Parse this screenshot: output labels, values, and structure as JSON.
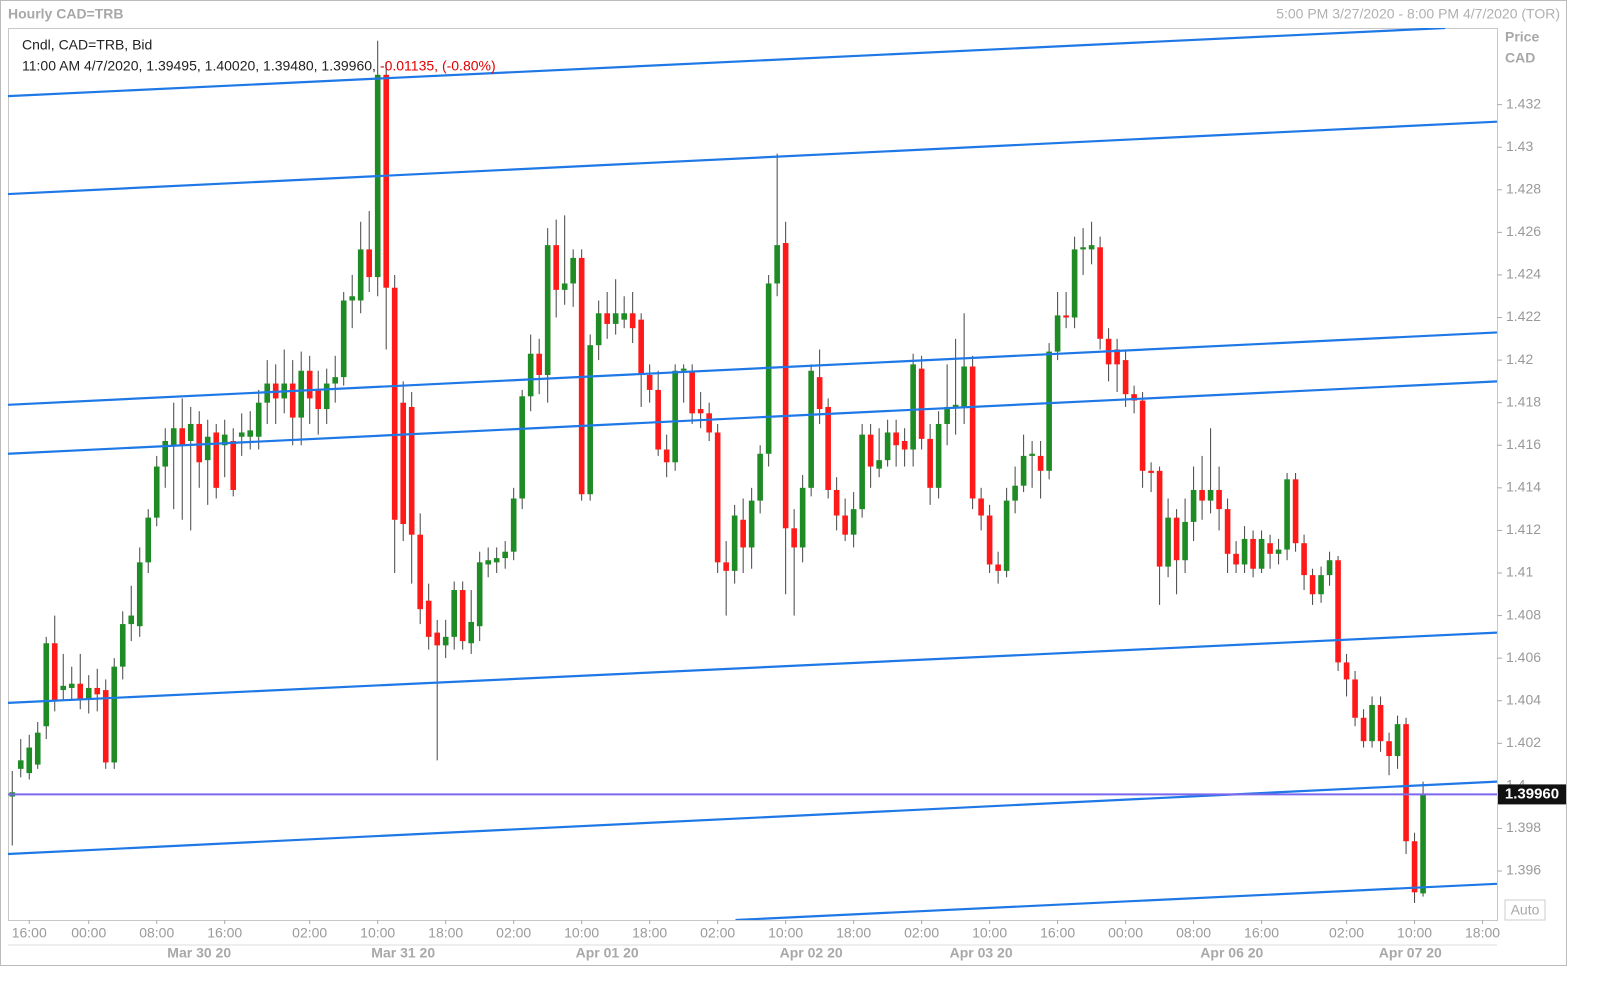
{
  "chart_data": {
    "type": "candlestick",
    "title": "Hourly CAD=TRB",
    "subtitle": "5:00 PM 3/27/2020 - 8:00 PM 4/7/2020 (TOR)",
    "legend_title": "Cndl, CAD=TRB, Bid",
    "legend_values": "11:00 AM 4/7/2020, 1.39495, 1.40020, 1.39480, 1.39960,",
    "legend_change": "-0.01135, (-0.80%)",
    "y_label": "Price",
    "y_unit": "CAD",
    "scale_mode": "Auto",
    "up_color": "#1f8b24",
    "down_color": "#ff1a1a",
    "wick_color": "#444444",
    "open": [
      1.3995,
      1.4008,
      1.4006,
      1.401,
      1.4028,
      1.4067,
      1.4045,
      1.4046,
      1.4048,
      1.4041,
      1.4046,
      1.4045,
      1.4011,
      1.4056,
      1.4076,
      1.4075,
      1.4105,
      1.4126,
      1.415,
      1.416,
      1.4168,
      1.4162,
      1.417,
      1.4153,
      1.4166,
      1.416,
      1.4162,
      1.4164,
      1.4164,
      1.4164,
      1.418,
      1.4189,
      1.4182,
      1.4189,
      1.4173,
      1.4195,
      1.4186,
      1.4177,
      1.4189,
      1.4192,
      1.4228,
      1.4228,
      1.4252,
      1.4239,
      1.4334,
      1.4234,
      1.418,
      1.4178,
      1.4118,
      1.4087,
      1.4072,
      1.4066,
      1.407,
      1.4092,
      1.4067,
      1.4075,
      1.4104,
      1.4105,
      1.4107,
      1.411,
      1.4135,
      1.4183,
      1.4203,
      1.4193,
      1.4254,
      1.4233,
      1.4236,
      1.4248,
      1.4137,
      1.4207,
      1.4222,
      1.4217,
      1.4219,
      1.4222,
      1.4219,
      1.4193,
      1.4186,
      1.4158,
      1.4152,
      1.4195,
      1.4195,
      1.4177,
      1.4175,
      1.4166,
      1.4105,
      1.4101,
      1.4125,
      1.4112,
      1.4134,
      1.4156,
      1.4236,
      1.4255,
      1.4121,
      1.4112,
      1.414,
      1.4192,
      1.4178,
      1.4139,
      1.4127,
      1.4118,
      1.413,
      1.4165,
      1.4149,
      1.4153,
      1.4166,
      1.4162,
      1.4158,
      1.4196,
      1.4163,
      1.414,
      1.417,
      1.4178,
      1.4178,
      1.4197,
      1.4135,
      1.4127,
      1.4104,
      1.4101,
      1.4134,
      1.4141,
      1.4155,
      1.4155,
      1.4148,
      1.4204,
      1.4221,
      1.422,
      1.4252,
      1.4252,
      1.4253,
      1.421,
      1.4205,
      1.42,
      1.4184,
      1.4181,
      1.4148,
      1.4148,
      1.4103,
      1.4126,
      1.4106,
      1.4124,
      1.4139,
      1.4134,
      1.4139,
      1.413,
      1.4109,
      1.4104,
      1.4116,
      1.4102,
      1.4114,
      1.4109,
      1.4111,
      1.4144,
      1.4114,
      1.4099,
      1.409,
      1.4099,
      1.4106,
      1.4058,
      1.405,
      1.4032,
      1.4021,
      1.4038,
      1.4021,
      1.4014,
      1.4029,
      1.3974,
      1.39495
    ],
    "high": [
      1.4007,
      1.4022,
      1.4024,
      1.403,
      1.407,
      1.408,
      1.4062,
      1.4056,
      1.4062,
      1.4052,
      1.4055,
      1.405,
      1.406,
      1.4082,
      1.4094,
      1.4112,
      1.413,
      1.4155,
      1.4168,
      1.418,
      1.4182,
      1.4178,
      1.4176,
      1.4172,
      1.417,
      1.4172,
      1.4168,
      1.4175,
      1.4176,
      1.4186,
      1.42,
      1.4198,
      1.4205,
      1.42,
      1.4204,
      1.4202,
      1.4195,
      1.4196,
      1.4202,
      1.4232,
      1.424,
      1.4265,
      1.427,
      1.435,
      1.434,
      1.424,
      1.419,
      1.4185,
      1.4128,
      1.4095,
      1.4078,
      1.4078,
      1.4096,
      1.4096,
      1.4092,
      1.411,
      1.4112,
      1.4112,
      1.4115,
      1.414,
      1.4186,
      1.4212,
      1.421,
      1.4262,
      1.4266,
      1.4268,
      1.4252,
      1.4252,
      1.4212,
      1.4228,
      1.4232,
      1.4238,
      1.423,
      1.4232,
      1.4222,
      1.4198,
      1.4195,
      1.4165,
      1.4198,
      1.4198,
      1.4198,
      1.4185,
      1.418,
      1.417,
      1.4115,
      1.4132,
      1.4135,
      1.414,
      1.416,
      1.424,
      1.4297,
      1.4265,
      1.413,
      1.4146,
      1.4198,
      1.4205,
      1.4182,
      1.4145,
      1.4135,
      1.4138,
      1.417,
      1.417,
      1.4168,
      1.4172,
      1.4172,
      1.4168,
      1.4203,
      1.4202,
      1.417,
      1.4176,
      1.4198,
      1.421,
      1.4222,
      1.4202,
      1.414,
      1.4132,
      1.411,
      1.414,
      1.415,
      1.4165,
      1.4162,
      1.4162,
      1.4208,
      1.4232,
      1.4232,
      1.4258,
      1.4262,
      1.4265,
      1.4258,
      1.4215,
      1.421,
      1.4205,
      1.4188,
      1.4185,
      1.4152,
      1.415,
      1.4135,
      1.413,
      1.4135,
      1.415,
      1.4155,
      1.4168,
      1.415,
      1.4135,
      1.4115,
      1.4122,
      1.412,
      1.412,
      1.4118,
      1.4116,
      1.4147,
      1.4147,
      1.4118,
      1.4102,
      1.4103,
      1.411,
      1.4108,
      1.4062,
      1.4054,
      1.4036,
      1.4042,
      1.4042,
      1.4025,
      1.4033,
      1.4032,
      1.3978,
      1.4002
    ],
    "low": [
      1.3972,
      1.4004,
      1.4003,
      1.4008,
      1.4022,
      1.4035,
      1.404,
      1.404,
      1.4036,
      1.4034,
      1.4035,
      1.4008,
      1.4008,
      1.405,
      1.4068,
      1.407,
      1.41,
      1.4122,
      1.414,
      1.413,
      1.4125,
      1.412,
      1.414,
      1.4132,
      1.4135,
      1.4145,
      1.4136,
      1.4155,
      1.4158,
      1.4158,
      1.417,
      1.417,
      1.4175,
      1.416,
      1.416,
      1.417,
      1.4165,
      1.417,
      1.418,
      1.4188,
      1.4215,
      1.4222,
      1.4232,
      1.423,
      1.4205,
      1.41,
      1.4115,
      1.4095,
      1.4076,
      1.4064,
      1.4012,
      1.406,
      1.4064,
      1.4064,
      1.4062,
      1.4068,
      1.4098,
      1.41,
      1.4102,
      1.4106,
      1.413,
      1.4176,
      1.4184,
      1.418,
      1.422,
      1.4226,
      1.4225,
      1.4134,
      1.4134,
      1.42,
      1.421,
      1.4212,
      1.4215,
      1.4208,
      1.4178,
      1.418,
      1.4155,
      1.4145,
      1.4148,
      1.418,
      1.417,
      1.4168,
      1.4162,
      1.41,
      1.408,
      1.4095,
      1.41,
      1.4102,
      1.4128,
      1.415,
      1.423,
      1.409,
      1.408,
      1.4105,
      1.4136,
      1.417,
      1.4135,
      1.412,
      1.4115,
      1.4112,
      1.4126,
      1.414,
      1.4145,
      1.415,
      1.415,
      1.415,
      1.415,
      1.4158,
      1.4132,
      1.4135,
      1.416,
      1.4165,
      1.417,
      1.413,
      1.412,
      1.41,
      1.4095,
      1.4098,
      1.4128,
      1.4138,
      1.414,
      1.4135,
      1.4144,
      1.42,
      1.4215,
      1.4215,
      1.424,
      1.4245,
      1.4205,
      1.419,
      1.4185,
      1.4178,
      1.4175,
      1.414,
      1.4138,
      1.4085,
      1.4098,
      1.409,
      1.41,
      1.4115,
      1.4125,
      1.4128,
      1.412,
      1.41,
      1.41,
      1.41,
      1.4098,
      1.41,
      1.4102,
      1.4104,
      1.4106,
      1.411,
      1.4092,
      1.4085,
      1.4086,
      1.4094,
      1.4054,
      1.4042,
      1.4028,
      1.4018,
      1.4018,
      1.4016,
      1.4005,
      1.4008,
      1.3968,
      1.3945,
      1.3948
    ],
    "close": [
      1.3997,
      1.4012,
      1.4018,
      1.4025,
      1.4067,
      1.404,
      1.4047,
      1.4048,
      1.4041,
      1.4046,
      1.4043,
      1.4011,
      1.4056,
      1.4076,
      1.408,
      1.4105,
      1.4126,
      1.415,
      1.4162,
      1.4168,
      1.416,
      1.417,
      1.4152,
      1.4164,
      1.414,
      1.4165,
      1.4139,
      1.4166,
      1.4167,
      1.418,
      1.4189,
      1.4182,
      1.4189,
      1.4173,
      1.4195,
      1.4182,
      1.4177,
      1.4189,
      1.4192,
      1.4228,
      1.423,
      1.4252,
      1.4239,
      1.4334,
      1.4234,
      1.4125,
      1.4123,
      1.4118,
      1.4083,
      1.407,
      1.4066,
      1.407,
      1.4092,
      1.4068,
      1.4077,
      1.4105,
      1.4106,
      1.4107,
      1.411,
      1.4135,
      1.4183,
      1.4203,
      1.4193,
      1.4254,
      1.4233,
      1.4236,
      1.4248,
      1.4137,
      1.4207,
      1.4222,
      1.4217,
      1.4222,
      1.4222,
      1.4215,
      1.4193,
      1.4186,
      1.4158,
      1.4152,
      1.4195,
      1.4196,
      1.4175,
      1.4175,
      1.4166,
      1.4105,
      1.4101,
      1.4127,
      1.4112,
      1.4134,
      1.4156,
      1.4236,
      1.4254,
      1.4121,
      1.4112,
      1.414,
      1.4195,
      1.4177,
      1.4139,
      1.4127,
      1.4118,
      1.413,
      1.4165,
      1.415,
      1.4153,
      1.4166,
      1.416,
      1.4158,
      1.4198,
      1.4163,
      1.414,
      1.417,
      1.4178,
      1.4179,
      1.4197,
      1.4135,
      1.4127,
      1.4104,
      1.4101,
      1.4134,
      1.4141,
      1.4155,
      1.4156,
      1.4148,
      1.4204,
      1.4221,
      1.422,
      1.4252,
      1.4253,
      1.4254,
      1.421,
      1.4198,
      1.4198,
      1.4184,
      1.4181,
      1.4148,
      1.4147,
      1.4103,
      1.4126,
      1.4106,
      1.4124,
      1.4139,
      1.4134,
      1.4139,
      1.413,
      1.4109,
      1.4104,
      1.4116,
      1.4102,
      1.4116,
      1.4109,
      1.4111,
      1.4144,
      1.4114,
      1.4099,
      1.409,
      1.4099,
      1.4106,
      1.4058,
      1.405,
      1.4032,
      1.4021,
      1.4038,
      1.4021,
      1.4014,
      1.4029,
      1.3974,
      1.395,
      1.3996
    ],
    "xlim": [
      -0.5,
      174.7
    ],
    "xticks": [
      {
        "value": 2,
        "label": "16:00"
      },
      {
        "value": 9,
        "label": "00:00"
      },
      {
        "value": 17,
        "label": "08:00"
      },
      {
        "value": 25,
        "label": "16:00"
      },
      {
        "value": 35,
        "label": "02:00"
      },
      {
        "value": 43,
        "label": "10:00"
      },
      {
        "value": 51,
        "label": "18:00"
      },
      {
        "value": 59,
        "label": "02:00"
      },
      {
        "value": 67,
        "label": "10:00"
      },
      {
        "value": 75,
        "label": "18:00"
      },
      {
        "value": 83,
        "label": "02:00"
      },
      {
        "value": 91,
        "label": "10:00"
      },
      {
        "value": 99,
        "label": "18:00"
      },
      {
        "value": 107,
        "label": "02:00"
      },
      {
        "value": 115,
        "label": "10:00"
      },
      {
        "value": 123,
        "label": "16:00"
      },
      {
        "value": 131,
        "label": "00:00"
      },
      {
        "value": 139,
        "label": "08:00"
      },
      {
        "value": 147,
        "label": "16:00"
      },
      {
        "value": 157,
        "label": "02:00"
      },
      {
        "value": 165,
        "label": "10:00"
      },
      {
        "value": 173,
        "label": "18:00"
      }
    ],
    "date_ticks": [
      {
        "value": 22,
        "label": "Mar 30 20"
      },
      {
        "value": 46,
        "label": "Mar 31 20"
      },
      {
        "value": 70,
        "label": "Apr 01 20"
      },
      {
        "value": 94,
        "label": "Apr 02 20"
      },
      {
        "value": 114,
        "label": "Apr 03 20"
      },
      {
        "value": 143.5,
        "label": "Apr 06 20"
      },
      {
        "value": 164.5,
        "label": "Apr 07 20"
      }
    ],
    "ylim": [
      1.3937,
      1.4356
    ],
    "yticks": [
      1.396,
      1.398,
      1.4,
      1.402,
      1.404,
      1.406,
      1.408,
      1.41,
      1.412,
      1.414,
      1.416,
      1.418,
      1.42,
      1.422,
      1.424,
      1.426,
      1.428,
      1.43,
      1.432
    ],
    "trend_color": "#1e78e6",
    "trend_lines": [
      {
        "x": [
          -0.5,
          168.6
        ],
        "y": [
          1.4324,
          1.4356
        ]
      },
      {
        "x": [
          -0.5,
          174.7
        ],
        "y": [
          1.4278,
          1.4312
        ]
      },
      {
        "x": [
          -0.5,
          174.7
        ],
        "y": [
          1.4179,
          1.4213
        ]
      },
      {
        "x": [
          -0.5,
          174.7
        ],
        "y": [
          1.4156,
          1.419
        ]
      },
      {
        "x": [
          -0.5,
          174.7
        ],
        "y": [
          1.4039,
          1.4072
        ]
      },
      {
        "x": [
          -0.5,
          174.7
        ],
        "y": [
          1.3968,
          1.4002
        ]
      },
      {
        "x": [
          85.1,
          174.7
        ],
        "y": [
          1.3937,
          1.3954
        ]
      }
    ],
    "last_price": 1.3996,
    "last_price_label": "1.39960",
    "last_price_color": "#7b68ee"
  }
}
